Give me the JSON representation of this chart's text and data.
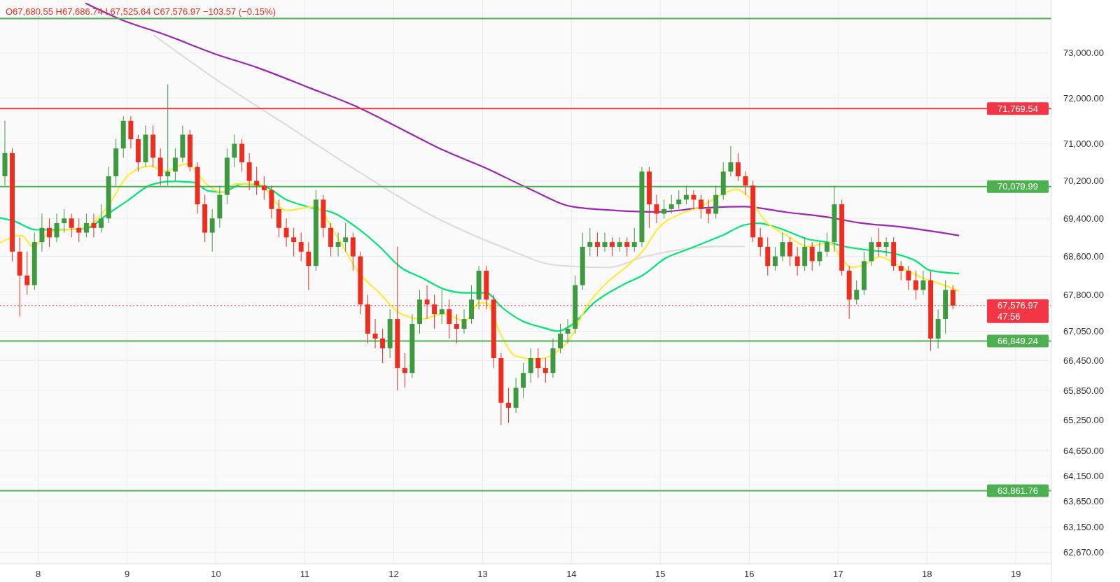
{
  "chart_data": {
    "type": "candlestick",
    "log": true,
    "grid": true,
    "xlim": [
      7.57,
      19.4
    ],
    "xticks": [
      8,
      9,
      10,
      11,
      12,
      13,
      14,
      15,
      16,
      17,
      18,
      19
    ],
    "ylim": [
      62450,
      74190
    ],
    "yticks": [
      {
        "value": 73000,
        "label": "73,000.00"
      },
      {
        "value": 72000,
        "label": "72,000.00"
      },
      {
        "value": 71000,
        "label": "71,000.00"
      },
      {
        "value": 70200,
        "label": "70,200.00"
      },
      {
        "value": 69400,
        "label": "69,400.00"
      },
      {
        "value": 68600,
        "label": "68,600.00"
      },
      {
        "value": 67800,
        "label": "67,800.00"
      },
      {
        "value": 67050,
        "label": "67,050.00"
      },
      {
        "value": 66450,
        "label": "66,450.00"
      },
      {
        "value": 65850,
        "label": "65,850.00"
      },
      {
        "value": 65250,
        "label": "65,250.00"
      },
      {
        "value": 64650,
        "label": "64,650.00"
      },
      {
        "value": 64150,
        "label": "64,150.00"
      },
      {
        "value": 63650,
        "label": "63,650.00"
      },
      {
        "value": 63150,
        "label": "63,150.00"
      },
      {
        "value": 62670,
        "label": "62,670.00"
      }
    ],
    "x": [
      7.625,
      7.708,
      7.792,
      7.875,
      7.958,
      8.042,
      8.125,
      8.208,
      8.292,
      8.375,
      8.458,
      8.542,
      8.625,
      8.708,
      8.792,
      8.875,
      8.958,
      9.042,
      9.125,
      9.208,
      9.292,
      9.375,
      9.458,
      9.542,
      9.625,
      9.708,
      9.792,
      9.875,
      9.958,
      10.042,
      10.125,
      10.208,
      10.292,
      10.375,
      10.458,
      10.542,
      10.625,
      10.708,
      10.792,
      10.875,
      10.958,
      11.042,
      11.125,
      11.208,
      11.292,
      11.375,
      11.458,
      11.542,
      11.625,
      11.708,
      11.792,
      11.875,
      11.958,
      12.042,
      12.125,
      12.208,
      12.292,
      12.375,
      12.458,
      12.542,
      12.625,
      12.708,
      12.792,
      12.875,
      12.958,
      13.042,
      13.125,
      13.208,
      13.292,
      13.375,
      13.458,
      13.542,
      13.625,
      13.708,
      13.792,
      13.875,
      13.958,
      14.042,
      14.125,
      14.208,
      14.292,
      14.375,
      14.458,
      14.542,
      14.625,
      14.708,
      14.792,
      14.875,
      14.958,
      15.042,
      15.125,
      15.208,
      15.292,
      15.375,
      15.458,
      15.542,
      15.625,
      15.708,
      15.792,
      15.875,
      15.958,
      16.042,
      16.125,
      16.208,
      16.292,
      16.375,
      16.458,
      16.542,
      16.625,
      16.708,
      16.792,
      16.875,
      16.958,
      17.042,
      17.125,
      17.208,
      17.292,
      17.375,
      17.458,
      17.542,
      17.625,
      17.708,
      17.792,
      17.875,
      17.958,
      18.042,
      18.125,
      18.208,
      18.292
    ],
    "ohlc": [
      [
        70300,
        71500,
        70100,
        70800
      ],
      [
        70800,
        70900,
        68500,
        68700
      ],
      [
        68700,
        69000,
        67350,
        68200
      ],
      [
        68200,
        68700,
        67800,
        68000
      ],
      [
        68000,
        69100,
        67900,
        68900
      ],
      [
        68900,
        69500,
        68700,
        69200
      ],
      [
        69200,
        69400,
        68800,
        69000
      ],
      [
        69000,
        69500,
        68900,
        69300
      ],
      [
        69300,
        69600,
        69100,
        69400
      ],
      [
        69400,
        69500,
        69000,
        69200
      ],
      [
        69200,
        69400,
        68900,
        69100
      ],
      [
        69100,
        69500,
        69000,
        69300
      ],
      [
        69300,
        69500,
        69000,
        69200
      ],
      [
        69200,
        69700,
        69100,
        69400
      ],
      [
        69400,
        70500,
        69300,
        70300
      ],
      [
        70300,
        71100,
        70100,
        70900
      ],
      [
        70900,
        71600,
        70700,
        71500
      ],
      [
        71500,
        71600,
        70900,
        71100
      ],
      [
        71100,
        71200,
        70400,
        70600
      ],
      [
        70600,
        71400,
        70500,
        71200
      ],
      [
        71200,
        71400,
        70500,
        70700
      ],
      [
        70700,
        70900,
        70100,
        70300
      ],
      [
        70300,
        72300,
        70100,
        70400
      ],
      [
        70400,
        70900,
        70200,
        70700
      ],
      [
        70700,
        71400,
        70600,
        71200
      ],
      [
        71200,
        71300,
        70400,
        70500
      ],
      [
        70500,
        70600,
        69500,
        69700
      ],
      [
        69700,
        69900,
        68900,
        69100
      ],
      [
        69100,
        69600,
        68700,
        69400
      ],
      [
        69400,
        70100,
        69200,
        69900
      ],
      [
        69900,
        70900,
        69700,
        70700
      ],
      [
        70700,
        71200,
        70500,
        71000
      ],
      [
        71000,
        71100,
        70400,
        70600
      ],
      [
        70600,
        70800,
        70000,
        70200
      ],
      [
        70200,
        70500,
        69900,
        70100
      ],
      [
        70100,
        70300,
        69800,
        70000
      ],
      [
        70000,
        70100,
        69400,
        69600
      ],
      [
        69600,
        69800,
        69000,
        69200
      ],
      [
        69200,
        69400,
        68800,
        69000
      ],
      [
        69000,
        69200,
        68600,
        68900
      ],
      [
        68900,
        69100,
        68500,
        68700
      ],
      [
        68700,
        68900,
        67900,
        68400
      ],
      [
        68400,
        70000,
        68300,
        69800
      ],
      [
        69800,
        69900,
        69000,
        69200
      ],
      [
        69200,
        69300,
        68600,
        68800
      ],
      [
        68800,
        69100,
        68600,
        68900
      ],
      [
        68900,
        69300,
        68700,
        69000
      ],
      [
        69000,
        69100,
        68300,
        68600
      ],
      [
        68600,
        68700,
        67400,
        67600
      ],
      [
        67600,
        67800,
        66800,
        67000
      ],
      [
        67000,
        67300,
        66700,
        66900
      ],
      [
        66900,
        67100,
        66400,
        66700
      ],
      [
        66700,
        67500,
        66500,
        67300
      ],
      [
        67300,
        68800,
        65850,
        66300
      ],
      [
        66300,
        66600,
        65900,
        66200
      ],
      [
        66200,
        67400,
        66100,
        67200
      ],
      [
        67200,
        67900,
        67000,
        67700
      ],
      [
        67700,
        68000,
        67300,
        67600
      ],
      [
        67600,
        67800,
        67100,
        67400
      ],
      [
        67400,
        67900,
        67200,
        67500
      ],
      [
        67500,
        67700,
        66900,
        67200
      ],
      [
        67200,
        67400,
        66800,
        67100
      ],
      [
        67100,
        67500,
        67000,
        67300
      ],
      [
        67300,
        68000,
        67200,
        67700
      ],
      [
        67700,
        68400,
        67500,
        68300
      ],
      [
        68300,
        68400,
        67500,
        67700
      ],
      [
        67700,
        67800,
        66300,
        66500
      ],
      [
        66500,
        66600,
        65150,
        65600
      ],
      [
        65600,
        65900,
        65200,
        65500
      ],
      [
        65500,
        66100,
        65400,
        65900
      ],
      [
        65900,
        66400,
        65700,
        66200
      ],
      [
        66200,
        66700,
        66000,
        66500
      ],
      [
        66500,
        66700,
        66100,
        66300
      ],
      [
        66300,
        66500,
        66000,
        66200
      ],
      [
        66200,
        66900,
        66100,
        66700
      ],
      [
        66700,
        67200,
        66600,
        67000
      ],
      [
        67000,
        67300,
        66800,
        67100
      ],
      [
        67100,
        68200,
        67000,
        68000
      ],
      [
        68000,
        69100,
        67900,
        68800
      ],
      [
        68800,
        69200,
        68600,
        68900
      ],
      [
        68900,
        69100,
        68600,
        68800
      ],
      [
        68800,
        69100,
        68700,
        68900
      ],
      [
        68900,
        69000,
        68600,
        68800
      ],
      [
        68800,
        69000,
        68700,
        68900
      ],
      [
        68900,
        69000,
        68600,
        68800
      ],
      [
        68800,
        69200,
        68700,
        68900
      ],
      [
        68900,
        70500,
        68800,
        70400
      ],
      [
        70400,
        70500,
        69200,
        69700
      ],
      [
        69700,
        69900,
        69300,
        69500
      ],
      [
        69500,
        69800,
        69400,
        69600
      ],
      [
        69600,
        69900,
        69500,
        69700
      ],
      [
        69700,
        70000,
        69600,
        69800
      ],
      [
        69800,
        70100,
        69700,
        69900
      ],
      [
        69900,
        70000,
        69600,
        69800
      ],
      [
        69800,
        69900,
        69400,
        69600
      ],
      [
        69600,
        69800,
        69300,
        69500
      ],
      [
        69500,
        70100,
        69400,
        69900
      ],
      [
        69900,
        70600,
        69800,
        70400
      ],
      [
        70400,
        70950,
        70300,
        70600
      ],
      [
        70600,
        70800,
        70200,
        70300
      ],
      [
        70300,
        70400,
        69900,
        70100
      ],
      [
        70100,
        70200,
        68900,
        69000
      ],
      [
        69000,
        69200,
        68600,
        68800
      ],
      [
        68800,
        69000,
        68200,
        68400
      ],
      [
        68400,
        68800,
        68300,
        68600
      ],
      [
        68600,
        69100,
        68500,
        68900
      ],
      [
        68900,
        69000,
        68400,
        68600
      ],
      [
        68600,
        68800,
        68200,
        68400
      ],
      [
        68400,
        69000,
        68300,
        68800
      ],
      [
        68800,
        68900,
        68300,
        68500
      ],
      [
        68500,
        68900,
        68400,
        68700
      ],
      [
        68700,
        69100,
        68600,
        68900
      ],
      [
        68900,
        70100,
        68700,
        69700
      ],
      [
        69700,
        69800,
        68200,
        68300
      ],
      [
        68300,
        68400,
        67300,
        67700
      ],
      [
        67700,
        68100,
        67600,
        67900
      ],
      [
        67900,
        68700,
        67800,
        68500
      ],
      [
        68500,
        69000,
        68400,
        68900
      ],
      [
        68900,
        69200,
        68600,
        68800
      ],
      [
        68800,
        69000,
        68600,
        68900
      ],
      [
        68900,
        69000,
        68300,
        68400
      ],
      [
        68400,
        68500,
        68100,
        68300
      ],
      [
        68300,
        68400,
        67900,
        68100
      ],
      [
        68100,
        68300,
        67700,
        67900
      ],
      [
        67900,
        68300,
        67800,
        68100
      ],
      [
        68100,
        68300,
        66650,
        66900
      ],
      [
        66900,
        67500,
        66700,
        67300
      ],
      [
        67300,
        68100,
        67000,
        67900
      ],
      [
        67900,
        68000,
        67500,
        67576.97
      ]
    ],
    "series": [
      {
        "type": "line",
        "color": "#dcdcdc",
        "x": [
          9.303,
          9.987,
          10.792,
          11.596,
          12.401,
          13.205,
          13.849,
          14.412,
          14.814,
          15.216,
          15.619,
          15.941
        ],
        "values": [
          73390,
          72430,
          71410,
          70410,
          69490,
          68810,
          68410,
          68370,
          68590,
          68740,
          68810,
          68810
        ]
      },
      {
        "type": "line",
        "color": "#9c27b0",
        "x": [
          8.539,
          8.941,
          9.424,
          9.987,
          10.47,
          11.033,
          11.596,
          12.079,
          12.561,
          13.044,
          13.527,
          14.01,
          14.492,
          14.975,
          15.458,
          15.941,
          16.423,
          16.906,
          17.228,
          17.71,
          18.354
        ],
        "values": [
          74110,
          73740,
          73410,
          72980,
          72670,
          72240,
          71800,
          71330,
          70860,
          70470,
          70030,
          69650,
          69570,
          69540,
          69620,
          69650,
          69530,
          69420,
          69310,
          69220,
          69040
        ]
      },
      {
        "type": "line",
        "color": "#00e676",
        "x": [
          7.574,
          7.735,
          7.976,
          8.217,
          8.539,
          8.78,
          9.022,
          9.263,
          9.504,
          9.746,
          9.907,
          10.068,
          10.309,
          10.55,
          10.792,
          11.033,
          11.355,
          11.596,
          11.837,
          12.079,
          12.32,
          12.561,
          12.803,
          13.044,
          13.205,
          13.446,
          13.688,
          13.849,
          14.01,
          14.251,
          14.573,
          14.814,
          15.055,
          15.297,
          15.538,
          15.699,
          15.941,
          16.101,
          16.343,
          16.665,
          16.906,
          17.067,
          17.308,
          17.63,
          17.871,
          18.032,
          18.354
        ],
        "values": [
          69410,
          69340,
          69160,
          69160,
          69190,
          69490,
          69800,
          70110,
          70190,
          70170,
          69990,
          69960,
          70140,
          70080,
          69800,
          69650,
          69490,
          69190,
          68810,
          68370,
          68150,
          67920,
          67840,
          67840,
          67560,
          67260,
          67120,
          67050,
          67190,
          67630,
          68000,
          68220,
          68560,
          68740,
          68920,
          69040,
          69260,
          69300,
          69190,
          68960,
          68890,
          68810,
          68740,
          68660,
          68510,
          68310,
          68240
        ]
      },
      {
        "type": "line",
        "color": "#ffeb3b",
        "x": [
          7.574,
          7.815,
          7.936,
          8.137,
          8.539,
          8.78,
          9.022,
          9.263,
          9.424,
          9.665,
          9.907,
          10.068,
          10.228,
          10.47,
          10.792,
          11.113,
          11.355,
          11.596,
          11.837,
          12.079,
          12.32,
          12.561,
          12.803,
          12.964,
          13.044,
          13.205,
          13.366,
          13.607,
          13.768,
          14.01,
          14.171,
          14.412,
          14.653,
          14.814,
          14.975,
          15.216,
          15.458,
          15.619,
          15.86,
          15.981,
          16.182,
          16.423,
          16.665,
          16.906,
          17.026,
          17.147,
          17.308,
          17.469,
          17.71,
          17.952,
          18.193,
          18.354
        ],
        "values": [
          68890,
          69040,
          68810,
          69110,
          69220,
          69650,
          70340,
          70520,
          70410,
          70570,
          70110,
          69960,
          70140,
          70140,
          69570,
          69650,
          69040,
          68290,
          67840,
          67410,
          67300,
          67410,
          67260,
          67630,
          67630,
          66980,
          66550,
          66480,
          66550,
          66980,
          67560,
          68070,
          68440,
          68740,
          69190,
          69490,
          69650,
          69830,
          70020,
          69880,
          69340,
          69040,
          68810,
          68890,
          68590,
          68370,
          68440,
          68590,
          68370,
          68150,
          68000,
          67880
        ]
      }
    ],
    "ref_lines": [
      {
        "axis": "y",
        "value": 73770,
        "color": "#4caf50",
        "line_style": "solid"
      },
      {
        "axis": "y",
        "value": 71769.54,
        "label": "71,769.54",
        "color": "#f23645",
        "line_style": "solid"
      },
      {
        "axis": "y",
        "value": 70079.99,
        "label": "70,079.99",
        "color": "#4caf50",
        "line_style": "solid"
      },
      {
        "axis": "y",
        "value": 67576.97,
        "label": "67,576.97",
        "color": "#f23645",
        "line_style": "dotted"
      },
      {
        "axis": "y",
        "value": 66849.24,
        "label": "66,849.24",
        "color": "#4caf50",
        "line_style": "solid"
      },
      {
        "axis": "y",
        "value": 63861.76,
        "label": "63,861.76",
        "color": "#4caf50",
        "line_style": "solid"
      }
    ],
    "annotations": [
      "O67,680.55 H67,686.74 L67,525.64 C67,576.97 −103.57 (−0.15%)",
      {
        "text": "47:56",
        "y": 67576.97
      }
    ]
  }
}
